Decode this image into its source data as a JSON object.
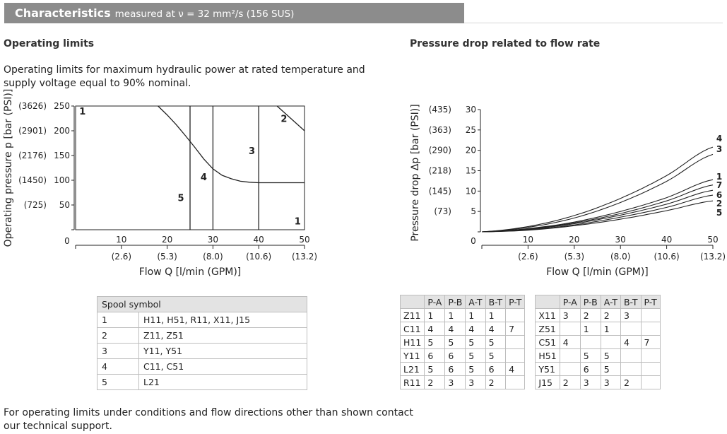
{
  "header": {
    "title": "Characteristics",
    "subtitle": "measured at ν = 32 mm²/s (156 SUS)"
  },
  "left": {
    "heading": "Operating limits",
    "description_line1": "Operating limits for maximum hydraulic power at rated temperature and",
    "description_line2": "supply voltage equal to 90% nominal."
  },
  "right": {
    "heading": "Pressure drop related to flow rate"
  },
  "chart_data": [
    {
      "type": "line",
      "title": "Operating limits",
      "ylabel": "Operating pressure p [bar (PSI)]",
      "xlabel": "Flow Q [l/min (GPM)]",
      "xlim": [
        0,
        50
      ],
      "ylim": [
        0,
        250
      ],
      "x_ticks": [
        "10",
        "20",
        "30",
        "40",
        "50"
      ],
      "x_ticks_secondary": [
        "(2.6)",
        "(5.3)",
        "(8.0)",
        "(10.6)",
        "(13.2)"
      ],
      "y_ticks": [
        "250",
        "200",
        "150",
        "100",
        "50"
      ],
      "y_ticks_secondary": [
        "(3626)",
        "(2901)",
        "(2176)",
        "(1450)",
        "(725)"
      ],
      "zero_label": "0",
      "series": [
        {
          "name": "1",
          "x": [
            18,
            20,
            22,
            24,
            26,
            28,
            30,
            32,
            34,
            36,
            38,
            40,
            50
          ],
          "y": [
            250,
            232,
            212,
            190,
            167,
            143,
            123,
            110,
            103,
            98,
            96,
            95,
            95
          ]
        },
        {
          "name": "2",
          "x": [
            44,
            50
          ],
          "y": [
            250,
            200
          ]
        },
        {
          "name": "3",
          "x": [
            40,
            40
          ],
          "y": [
            0,
            250
          ]
        },
        {
          "name": "4",
          "x": [
            30,
            30
          ],
          "y": [
            0,
            250
          ]
        },
        {
          "name": "5",
          "x": [
            25,
            25
          ],
          "y": [
            0,
            250
          ]
        }
      ],
      "region_labels": [
        {
          "text": "1",
          "x": 1.5,
          "y": 240
        },
        {
          "text": "2",
          "x": 45.5,
          "y": 225
        },
        {
          "text": "3",
          "x": 38.5,
          "y": 160
        },
        {
          "text": "4",
          "x": 28,
          "y": 107
        },
        {
          "text": "5",
          "x": 23,
          "y": 65
        },
        {
          "text": "1",
          "x": 48.5,
          "y": 18
        }
      ]
    },
    {
      "type": "line",
      "title": "Pressure drop related to flow rate",
      "ylabel": "Pressure drop Δp [bar (PSI)]",
      "xlabel": "Flow Q [l/min (GPM)]",
      "xlim": [
        0,
        50
      ],
      "ylim": [
        0,
        30
      ],
      "x_ticks": [
        "10",
        "20",
        "30",
        "40",
        "50"
      ],
      "x_ticks_secondary": [
        "(2.6)",
        "(5.3)",
        "(8.0)",
        "(10.6)",
        "(13.2)"
      ],
      "y_ticks": [
        "30",
        "25",
        "20",
        "15",
        "10",
        "5"
      ],
      "y_ticks_secondary": [
        "(435)",
        "(363)",
        "(290)",
        "(218)",
        "(145)",
        "(73)"
      ],
      "zero_label": "0",
      "series": [
        {
          "name": "4",
          "x": [
            0,
            10,
            20,
            30,
            40,
            50
          ],
          "y": [
            0,
            1.3,
            4.0,
            8.2,
            13.8,
            20.8
          ]
        },
        {
          "name": "3",
          "x": [
            0,
            10,
            20,
            30,
            40,
            50
          ],
          "y": [
            0,
            1.1,
            3.4,
            7.2,
            12.4,
            19.0
          ]
        },
        {
          "name": "1",
          "x": [
            0,
            10,
            20,
            30,
            40,
            50
          ],
          "y": [
            0,
            0.8,
            2.4,
            5.0,
            8.4,
            12.8
          ]
        },
        {
          "name": "7",
          "x": [
            0,
            10,
            20,
            30,
            40,
            50
          ],
          "y": [
            0,
            0.7,
            2.2,
            4.5,
            7.6,
            11.5
          ]
        },
        {
          "name": "6",
          "x": [
            0,
            10,
            20,
            30,
            40,
            50
          ],
          "y": [
            0,
            0.6,
            2.0,
            4.1,
            6.8,
            10.2
          ]
        },
        {
          "name": "2",
          "x": [
            0,
            10,
            20,
            30,
            40,
            50
          ],
          "y": [
            0,
            0.5,
            1.7,
            3.6,
            6.0,
            9.0
          ]
        },
        {
          "name": "5",
          "x": [
            0,
            10,
            20,
            30,
            40,
            50
          ],
          "y": [
            0,
            0.4,
            1.5,
            3.1,
            5.2,
            7.6
          ]
        }
      ]
    }
  ],
  "spool_table": {
    "header": "Spool symbol",
    "rows": [
      {
        "n": "1",
        "v": "H11, H51, R11, X11, J15"
      },
      {
        "n": "2",
        "v": "Z11, Z51"
      },
      {
        "n": "3",
        "v": "Y11, Y51"
      },
      {
        "n": "4",
        "v": "C11, C51"
      },
      {
        "n": "5",
        "v": "L21"
      }
    ]
  },
  "flow_table": {
    "columns": [
      "P-A",
      "P-B",
      "A-T",
      "B-T",
      "P-T"
    ],
    "left_rows": [
      {
        "spool": "Z11",
        "cells": [
          "1",
          "1",
          "1",
          "1",
          ""
        ]
      },
      {
        "spool": "C11",
        "cells": [
          "4",
          "4",
          "4",
          "4",
          "7"
        ]
      },
      {
        "spool": "H11",
        "cells": [
          "5",
          "5",
          "5",
          "5",
          ""
        ]
      },
      {
        "spool": "Y11",
        "cells": [
          "6",
          "6",
          "5",
          "5",
          ""
        ]
      },
      {
        "spool": "L21",
        "cells": [
          "5",
          "6",
          "5",
          "6",
          "4"
        ]
      },
      {
        "spool": "R11",
        "cells": [
          "2",
          "3",
          "3",
          "2",
          ""
        ]
      }
    ],
    "right_rows": [
      {
        "spool": "X11",
        "cells": [
          "3",
          "2",
          "2",
          "3",
          ""
        ]
      },
      {
        "spool": "Z51",
        "cells": [
          "",
          "1",
          "1",
          "",
          ""
        ]
      },
      {
        "spool": "C51",
        "cells": [
          "4",
          "",
          "",
          "4",
          "7"
        ]
      },
      {
        "spool": "H51",
        "cells": [
          "",
          "5",
          "5",
          "",
          ""
        ]
      },
      {
        "spool": "Y51",
        "cells": [
          "",
          "6",
          "5",
          "",
          ""
        ]
      },
      {
        "spool": "J15",
        "cells": [
          "2",
          "3",
          "3",
          "2",
          ""
        ]
      }
    ]
  },
  "footer": {
    "line1": "For operating limits under conditions and flow directions other than shown contact",
    "line2": "our technical support."
  }
}
